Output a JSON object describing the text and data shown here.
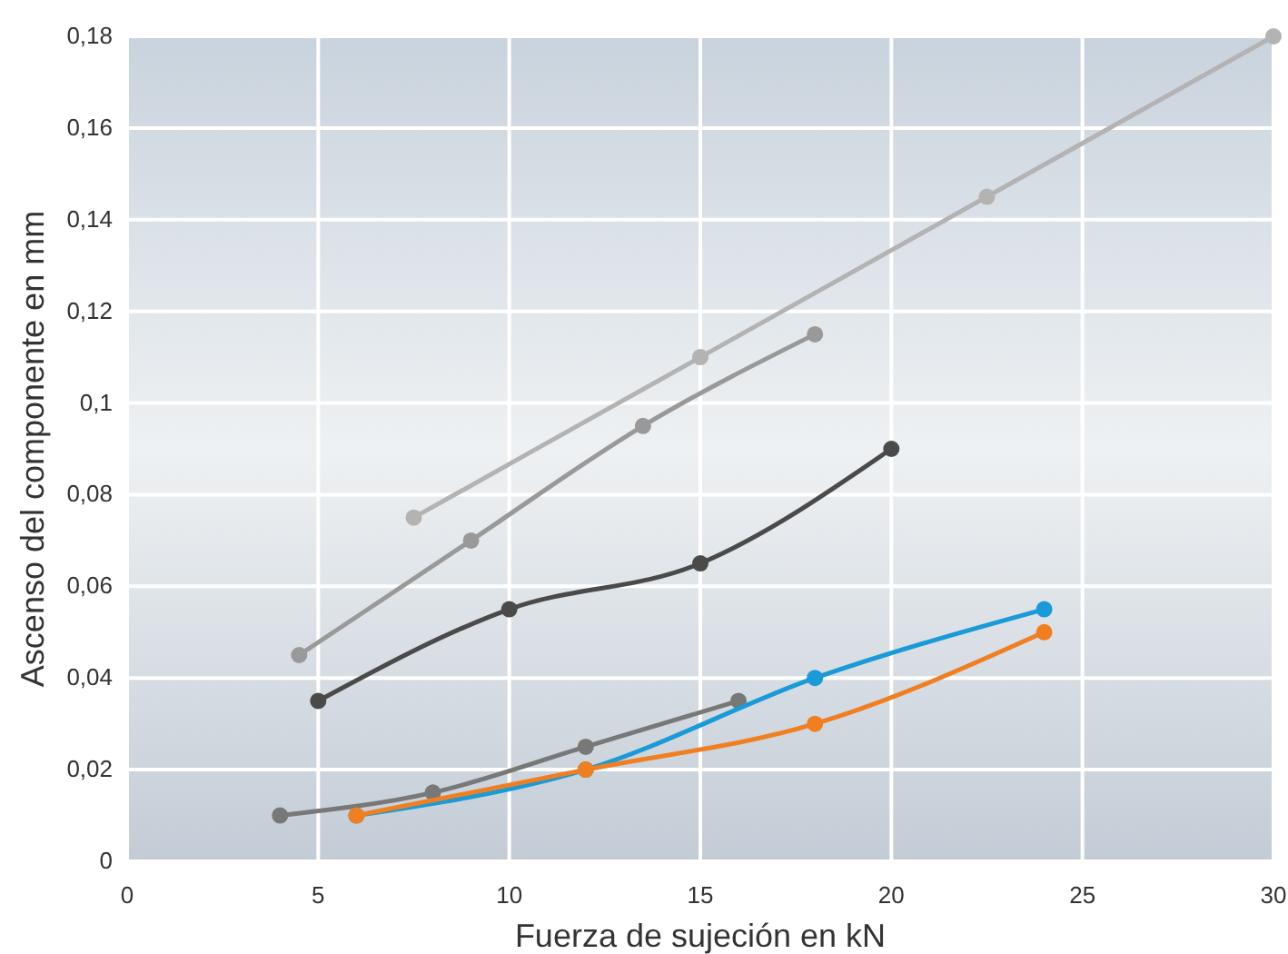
{
  "chart_data": {
    "type": "line",
    "xlabel": "Fuerza de sujeción en kN",
    "ylabel": "Ascenso del componente en mm",
    "xlim": [
      0,
      30
    ],
    "ylim": [
      0,
      0.18
    ],
    "xticks": [
      0,
      5,
      10,
      15,
      20,
      25,
      30
    ],
    "yticks": [
      0,
      {
        "value": 0.02,
        "label": "0,02"
      },
      {
        "value": 0.04,
        "label": "0,04"
      },
      {
        "value": 0.06,
        "label": "0,06"
      },
      {
        "value": 0.08,
        "label": "0,08"
      },
      {
        "value": 0.1,
        "label": "0,1"
      },
      {
        "value": 0.12,
        "label": "0,12"
      },
      {
        "value": 0.14,
        "label": "0,14"
      },
      {
        "value": 0.16,
        "label": "0,16"
      },
      {
        "value": 0.18,
        "label": "0,18"
      }
    ],
    "grid": true,
    "marker": "circle",
    "line_style": "solid",
    "series": [
      {
        "color": "#b3b3b3",
        "x": [
          7.5,
          15,
          22.5,
          30
        ],
        "values": [
          0.075,
          0.11,
          0.145,
          0.18
        ]
      },
      {
        "color": "#999999",
        "x": [
          4.5,
          9,
          13.5,
          18
        ],
        "values": [
          0.045,
          0.07,
          0.095,
          0.115
        ]
      },
      {
        "color": "#4a4a4a",
        "x": [
          5,
          10,
          15,
          20
        ],
        "values": [
          0.035,
          0.055,
          0.065,
          0.09
        ]
      },
      {
        "color": "#787878",
        "x": [
          4,
          8,
          12,
          16
        ],
        "values": [
          0.01,
          0.015,
          0.025,
          0.035
        ]
      },
      {
        "color": "#1a9ad6",
        "x": [
          6,
          12,
          18,
          24
        ],
        "values": [
          0.01,
          0.02,
          0.04,
          0.055
        ]
      },
      {
        "color": "#f07f22",
        "x": [
          6,
          12,
          18,
          24
        ],
        "values": [
          0.01,
          0.02,
          0.03,
          0.05
        ]
      }
    ]
  }
}
